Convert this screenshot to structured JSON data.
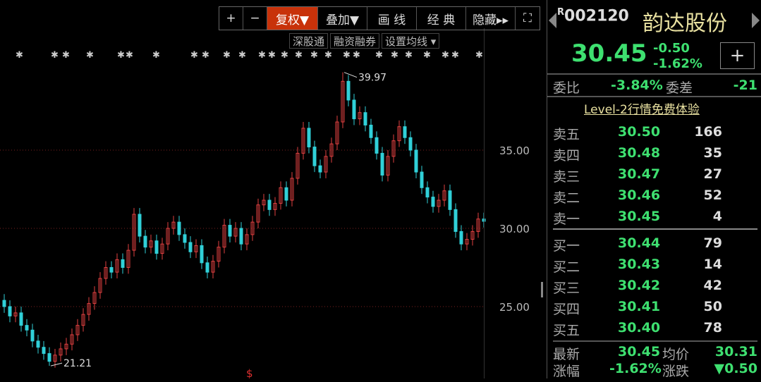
{
  "toolbar": {
    "zoom_in": "+",
    "zoom_out": "−",
    "restore_rights": "复权▼",
    "overlay": "叠加▼",
    "draw": "画 线",
    "classic": "经 典",
    "hide": "隐藏▸▸",
    "fullscreen": "⛶"
  },
  "subbar": {
    "connect": "深股通",
    "margin": "融资融券",
    "ma_settings": "设置均线 ▾"
  },
  "axis": {
    "ticks": [
      "35.00",
      "30.00",
      "25.00"
    ]
  },
  "annotations": {
    "high": "39.97",
    "low": "21.21",
    "marker": "$"
  },
  "colors": {
    "up": "#e04040",
    "down": "#30d0d8",
    "accent": "#c8320a",
    "green": "#3ee070"
  },
  "chart_data": {
    "type": "candlestick",
    "tick_values": [
      35,
      30,
      25
    ],
    "high": 39.97,
    "low": 21.21,
    "closes": [
      25.0,
      24.4,
      24.6,
      23.8,
      23.5,
      22.8,
      22.4,
      22.0,
      21.5,
      21.9,
      22.3,
      22.6,
      23.2,
      23.8,
      24.5,
      25.2,
      25.9,
      26.8,
      27.5,
      27.2,
      28.0,
      27.5,
      28.6,
      30.9,
      29.5,
      28.8,
      29.2,
      28.4,
      29.0,
      30.0,
      30.4,
      29.6,
      29.1,
      28.5,
      28.9,
      27.8,
      27.2,
      27.9,
      28.8,
      30.2,
      29.5,
      30.0,
      29.0,
      29.6,
      30.4,
      31.5,
      31.8,
      31.2,
      31.6,
      32.6,
      31.8,
      33.2,
      34.8,
      36.4,
      35.2,
      34.0,
      33.6,
      34.6,
      35.4,
      36.8,
      39.4,
      38.2,
      37.0,
      37.4,
      36.6,
      35.8,
      34.8,
      33.4,
      34.6,
      35.6,
      36.5,
      35.8,
      35.0,
      33.6,
      32.6,
      32.0,
      31.4,
      31.8,
      32.4,
      31.2,
      29.8,
      29.0,
      29.3,
      29.8,
      30.6,
      30.45
    ]
  },
  "quote": {
    "code_prefix": "R",
    "code": "002120",
    "name": "韵达股份",
    "price": "30.45",
    "change": "-0.50",
    "change_pct": "-1.62%",
    "add": "+",
    "wb_label": "委比",
    "wb": "-3.84%",
    "wc_label": "委差",
    "wc": "-21",
    "level2": "Level-2行情免费体验",
    "asks": [
      {
        "label": "卖五",
        "price": "30.50",
        "vol": "166"
      },
      {
        "label": "卖四",
        "price": "30.48",
        "vol": "35"
      },
      {
        "label": "卖三",
        "price": "30.47",
        "vol": "27"
      },
      {
        "label": "卖二",
        "price": "30.46",
        "vol": "52"
      },
      {
        "label": "卖一",
        "price": "30.45",
        "vol": "4"
      }
    ],
    "bids": [
      {
        "label": "买一",
        "price": "30.44",
        "vol": "79"
      },
      {
        "label": "买二",
        "price": "30.43",
        "vol": "14"
      },
      {
        "label": "买三",
        "price": "30.42",
        "vol": "42"
      },
      {
        "label": "买四",
        "price": "30.41",
        "vol": "50"
      },
      {
        "label": "买五",
        "price": "30.40",
        "vol": "78"
      }
    ],
    "last_label": "最新",
    "last": "30.45",
    "avg_label": "均价",
    "avg": "30.31",
    "pct_label": "涨幅",
    "pct": "-1.62%",
    "chg_label": "涨跌",
    "chg": "▼0.50"
  }
}
